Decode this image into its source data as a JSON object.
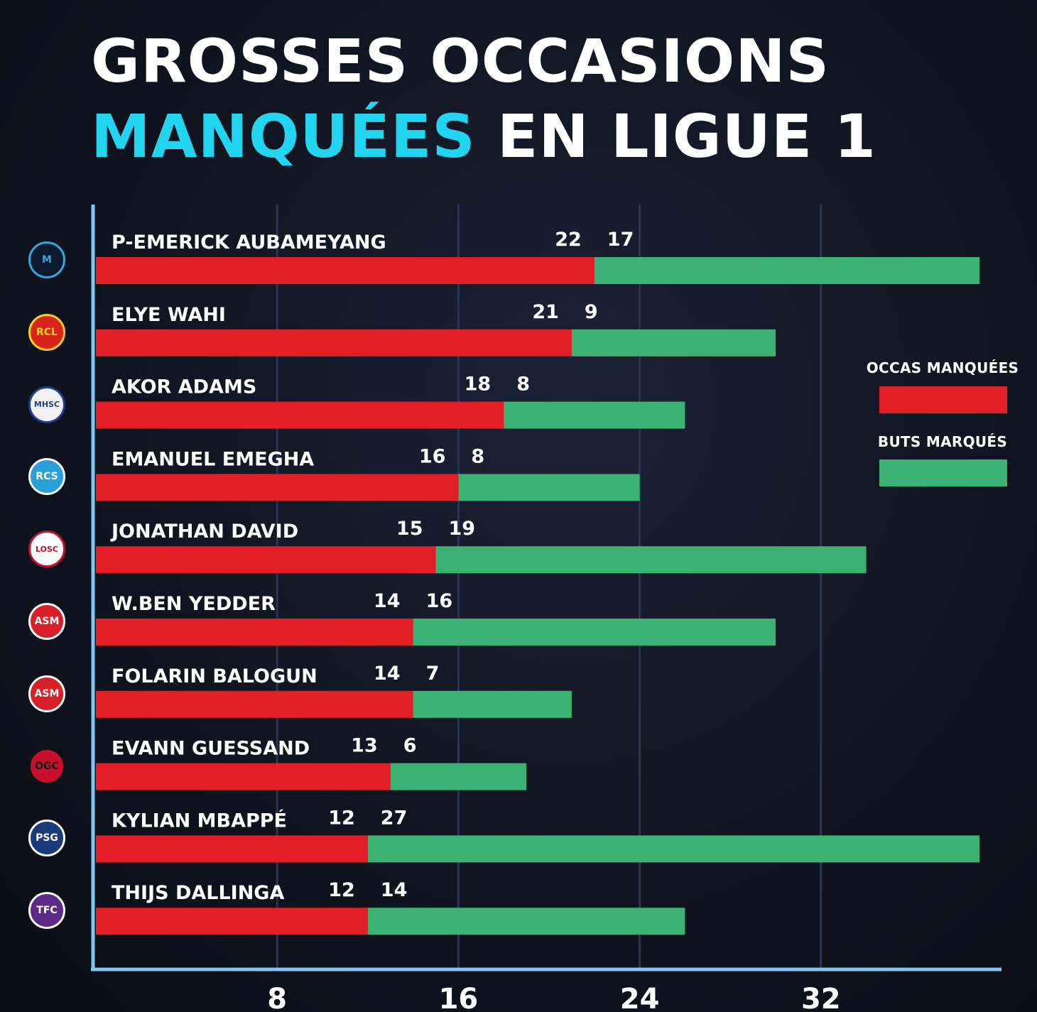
{
  "title": {
    "line1": "GROSSES OCCASIONS",
    "line2_accent": "MANQUÉES",
    "line2_rest": "EN LIGUE 1"
  },
  "legend": {
    "missed_label": "OCCAS MANQUÉES",
    "goals_label": "BUTS MARQUÉS"
  },
  "colors": {
    "missed": "#e41e26",
    "goals": "#3bb273",
    "accent": "#21d4ef",
    "axis": "#7ec8f0",
    "grid": "#2a3554"
  },
  "logos": [
    {
      "name": "om-logo-icon",
      "text": "M",
      "bg": "#0b1a2e",
      "fg": "#2fa9e0"
    },
    {
      "name": "rc-lens-logo-icon",
      "text": "RCL",
      "bg": "#d9241c",
      "fg": "#f5d020"
    },
    {
      "name": "montpellier-logo-icon",
      "text": "MHSC",
      "bg": "#f2f2f2",
      "fg": "#1f3f8a"
    },
    {
      "name": "strasbourg-logo-icon",
      "text": "RCS",
      "bg": "#2a9fd8",
      "fg": "#ffffff"
    },
    {
      "name": "losc-logo-icon",
      "text": "LOSC",
      "bg": "#ffffff",
      "fg": "#c8102e"
    },
    {
      "name": "monaco-logo-icon",
      "text": "ASM",
      "bg": "#d8202a",
      "fg": "#ffffff"
    },
    {
      "name": "monaco-logo-icon-2",
      "text": "ASM",
      "bg": "#d8202a",
      "fg": "#ffffff"
    },
    {
      "name": "ogc-nice-logo-icon",
      "text": "OGC",
      "bg": "#c8102e",
      "fg": "#111111"
    },
    {
      "name": "psg-logo-icon",
      "text": "PSG",
      "bg": "#1a3a7a",
      "fg": "#ffffff"
    },
    {
      "name": "toulouse-logo-icon",
      "text": "TFC",
      "bg": "#5b2a86",
      "fg": "#ffffff"
    }
  ],
  "chart_data": {
    "type": "bar",
    "orientation": "horizontal",
    "stacked": true,
    "categories": [
      "P-EMERICK AUBAMEYANG",
      "ELYE WAHI",
      "AKOR ADAMS",
      "EMANUEL EMEGHA",
      "JONATHAN DAVID",
      "W.BEN YEDDER",
      "FOLARIN BALOGUN",
      "EVANN GUESSAND",
      "KYLIAN MBAPPÉ",
      "THIJS DALLINGA"
    ],
    "series": [
      {
        "name": "OCCAS MANQUÉES",
        "values": [
          22,
          21,
          18,
          16,
          15,
          14,
          14,
          13,
          12,
          12
        ]
      },
      {
        "name": "BUTS MARQUÉS",
        "values": [
          17,
          9,
          8,
          8,
          19,
          16,
          7,
          6,
          27,
          14
        ]
      }
    ],
    "xticks": [
      "8",
      "16",
      "24",
      "32"
    ],
    "xtick_values": [
      8,
      16,
      24,
      32
    ],
    "grid": true,
    "legend_position": "right"
  }
}
